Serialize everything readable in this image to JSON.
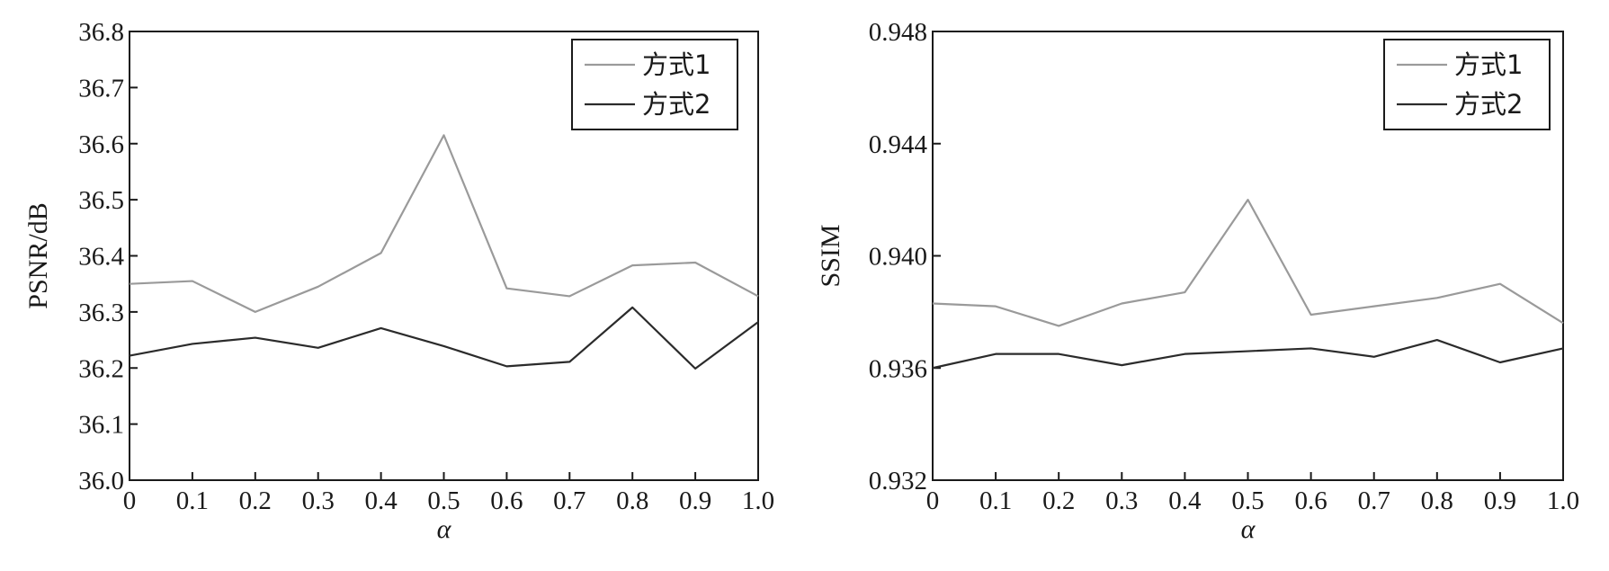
{
  "chart_data": [
    {
      "type": "line",
      "title": "",
      "xlabel": "α",
      "ylabel": "PSNR/dB",
      "x": [
        0,
        0.1,
        0.2,
        0.3,
        0.4,
        0.5,
        0.6,
        0.7,
        0.8,
        0.9,
        1.0
      ],
      "xlim": [
        0,
        1.0
      ],
      "ylim": [
        36.0,
        36.8
      ],
      "x_ticks": [
        "0",
        "0.1",
        "0.2",
        "0.3",
        "0.4",
        "0.5",
        "0.6",
        "0.7",
        "0.8",
        "0.9",
        "1.0"
      ],
      "y_ticks": [
        "36.0",
        "36.1",
        "36.2",
        "36.3",
        "36.4",
        "36.5",
        "36.6",
        "36.7",
        "36.8"
      ],
      "grid": false,
      "legend_position": "top-right",
      "series": [
        {
          "name": "方式1",
          "color": "#9a9a9a",
          "values": [
            36.35,
            36.355,
            36.3,
            36.345,
            36.405,
            36.615,
            36.342,
            36.328,
            36.383,
            36.388,
            36.328
          ]
        },
        {
          "name": "方式2",
          "color": "#2b2b2b",
          "values": [
            36.222,
            36.243,
            36.254,
            36.236,
            36.271,
            36.239,
            36.203,
            36.211,
            36.308,
            36.199,
            36.282
          ]
        }
      ]
    },
    {
      "type": "line",
      "title": "",
      "xlabel": "α",
      "ylabel": "SSIM",
      "x": [
        0,
        0.1,
        0.2,
        0.3,
        0.4,
        0.5,
        0.6,
        0.7,
        0.8,
        0.9,
        1.0
      ],
      "xlim": [
        0,
        1.0
      ],
      "ylim": [
        0.932,
        0.948
      ],
      "x_ticks": [
        "0",
        "0.1",
        "0.2",
        "0.3",
        "0.4",
        "0.5",
        "0.6",
        "0.7",
        "0.8",
        "0.9",
        "1.0"
      ],
      "y_ticks": [
        "0.932",
        "0.936",
        "0.940",
        "0.944",
        "0.948"
      ],
      "grid": false,
      "legend_position": "top-right",
      "series": [
        {
          "name": "方式1",
          "color": "#9a9a9a",
          "values": [
            0.9383,
            0.9382,
            0.9375,
            0.9383,
            0.9387,
            0.942,
            0.9379,
            0.9382,
            0.9385,
            0.939,
            0.9376
          ]
        },
        {
          "name": "方式2",
          "color": "#2b2b2b",
          "values": [
            0.936,
            0.9365,
            0.9365,
            0.9361,
            0.9365,
            0.9366,
            0.9367,
            0.9364,
            0.937,
            0.9362,
            0.9367
          ]
        }
      ]
    }
  ]
}
